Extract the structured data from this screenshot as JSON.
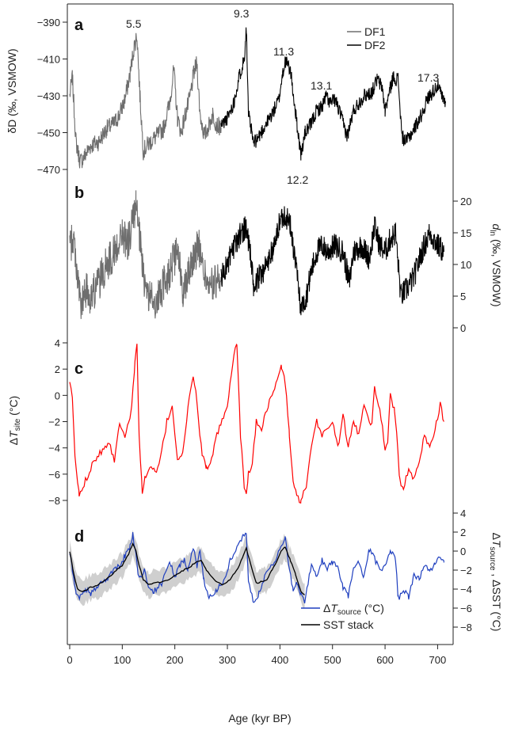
{
  "colors": {
    "df1": "#6e6e6e",
    "df2": "#000000",
    "site": "#ff0000",
    "source": "#1f3fbf",
    "sst": "#000000",
    "band": "#cfcfcf"
  },
  "chart_data": [
    {
      "panel": "a",
      "type": "line",
      "ylabel": "δD (‰, VSMOW)",
      "ylim": [
        -475,
        -385
      ],
      "y_inverted": false,
      "yticks": [
        "-390",
        "-410",
        "-430",
        "-450",
        "-470"
      ],
      "legend": [
        "DF1",
        "DF2"
      ],
      "series": [
        {
          "name": "DF1",
          "x": [
            0,
            5,
            12,
            20,
            30,
            40,
            55,
            70,
            85,
            95,
            105,
            115,
            122,
            128,
            134,
            140,
            150,
            165,
            178,
            190,
            198,
            205,
            212,
            220,
            228,
            236,
            242,
            248,
            256,
            265,
            272,
            280,
            288
          ],
          "y": [
            -430,
            -420,
            -455,
            -466,
            -462,
            -457,
            -455,
            -448,
            -445,
            -440,
            -432,
            -418,
            -404,
            -397,
            -432,
            -460,
            -456,
            -452,
            -448,
            -434,
            -416,
            -442,
            -450,
            -440,
            -432,
            -418,
            -412,
            -440,
            -452,
            -446,
            -440,
            -446,
            -447
          ]
        },
        {
          "name": "DF2",
          "x": [
            288,
            300,
            312,
            322,
            332,
            336,
            340,
            350,
            360,
            372,
            385,
            398,
            405,
            410,
            420,
            430,
            440,
            448,
            458,
            470,
            480,
            488,
            496,
            505,
            515,
            528,
            540,
            550,
            560,
            575,
            585,
            595,
            600,
            605,
            615,
            625,
            632,
            640,
            655,
            670,
            680,
            690,
            700,
            710,
            715
          ],
          "y": [
            -446,
            -442,
            -434,
            -420,
            -410,
            -392,
            -440,
            -456,
            -452,
            -446,
            -440,
            -432,
            -418,
            -411,
            -416,
            -440,
            -462,
            -450,
            -446,
            -438,
            -436,
            -430,
            -434,
            -432,
            -440,
            -452,
            -438,
            -434,
            -430,
            -428,
            -421,
            -426,
            -438,
            -432,
            -420,
            -421,
            -452,
            -455,
            -448,
            -440,
            -432,
            -428,
            -424,
            -432,
            -434
          ]
        }
      ],
      "annotations": [
        "5.5",
        "9.3",
        "11.3",
        "13.1",
        "17.3",
        "12.2"
      ]
    },
    {
      "panel": "b",
      "type": "line",
      "ylabel": "d_ln (‰, VSMOW)",
      "ylim": [
        0,
        22
      ],
      "yticks": [
        "20",
        "15",
        "10",
        "5",
        "0"
      ],
      "series": [
        {
          "name": "DF1",
          "x": [
            0,
            8,
            15,
            22,
            30,
            40,
            55,
            70,
            85,
            100,
            110,
            120,
            126,
            132,
            140,
            150,
            165,
            180,
            195,
            205,
            215,
            230,
            245,
            255,
            265,
            275,
            288
          ],
          "y": [
            13,
            14,
            8,
            3,
            6,
            5,
            7,
            10,
            12,
            15,
            13,
            17,
            19,
            15,
            8,
            5,
            4,
            7,
            10,
            12,
            6,
            10,
            13,
            9,
            6,
            7,
            8
          ]
        },
        {
          "name": "DF2",
          "x": [
            288,
            300,
            315,
            325,
            335,
            342,
            350,
            360,
            375,
            390,
            400,
            410,
            420,
            430,
            440,
            450,
            460,
            470,
            480,
            490,
            505,
            520,
            532,
            540,
            555,
            570,
            580,
            590,
            600,
            610,
            620,
            630,
            640,
            655,
            670,
            685,
            700,
            712
          ],
          "y": [
            8,
            10,
            13,
            15,
            16,
            13,
            6,
            8,
            10,
            13,
            17,
            18,
            16,
            10,
            3,
            5,
            9,
            12,
            13,
            12,
            13,
            12,
            7,
            12,
            13,
            11,
            16,
            13,
            12,
            14,
            15,
            5,
            6,
            8,
            12,
            15,
            13,
            12
          ]
        }
      ]
    },
    {
      "panel": "c",
      "type": "line",
      "ylabel": "ΔT_site (°C)",
      "ylim": [
        -8.5,
        4.5
      ],
      "yticks": [
        "4",
        "2",
        "0",
        "-2",
        "-4",
        "-6",
        "-8"
      ],
      "series": [
        {
          "name": "ΔT_site",
          "x": [
            0,
            5,
            10,
            18,
            25,
            35,
            45,
            55,
            65,
            75,
            85,
            95,
            105,
            112,
            118,
            124,
            128,
            132,
            138,
            145,
            155,
            165,
            175,
            185,
            195,
            205,
            215,
            225,
            235,
            240,
            245,
            252,
            260,
            270,
            280,
            290,
            300,
            310,
            318,
            325,
            332,
            336,
            340,
            348,
            355,
            365,
            375,
            385,
            395,
            403,
            410,
            418,
            425,
            432,
            440,
            450,
            460,
            470,
            480,
            490,
            500,
            510,
            520,
            530,
            540,
            550,
            560,
            570,
            575,
            580,
            590,
            600,
            605,
            610,
            618,
            622,
            628,
            635,
            645,
            655,
            665,
            675,
            685,
            695,
            705,
            712
          ],
          "y": [
            0.8,
            0,
            -4.8,
            -7.6,
            -7,
            -6,
            -5,
            -4.5,
            -4,
            -3.5,
            -5,
            -2,
            -3,
            -2,
            -1,
            2.5,
            3.8,
            -3,
            -7.4,
            -6,
            -5.5,
            -6,
            -4.3,
            -2,
            -0.8,
            -4.8,
            -4.5,
            -1,
            1.5,
            0.5,
            -2,
            -4.5,
            -5.5,
            -5,
            -3,
            -2,
            -1,
            2.5,
            4,
            -3,
            -7,
            -7.5,
            -6,
            -5,
            -2,
            -2.5,
            -1,
            0,
            1.2,
            2.2,
            1,
            -3,
            -6.5,
            -7.8,
            -8,
            -7,
            -4,
            -2,
            -3,
            -2.5,
            -2,
            -4,
            -1.5,
            -4,
            -2,
            -3,
            -0.5,
            -2,
            -2,
            0.5,
            -1,
            -4,
            -3.5,
            0.2,
            -1.2,
            -3,
            -6.5,
            -7.2,
            -5.5,
            -6.5,
            -5,
            -3,
            -4,
            -2.5,
            -0.7,
            -2
          ]
        }
      ]
    },
    {
      "panel": "d",
      "type": "line",
      "ylabel": "ΔT_source , ΔSST (°C)",
      "ylim": [
        -8.5,
        4.5
      ],
      "yticks": [
        "4",
        "2",
        "0",
        "-2",
        "-4",
        "-6",
        "-8"
      ],
      "legend": [
        "ΔT_source (°C)",
        "SST stack"
      ],
      "series": [
        {
          "name": "ΔT_source (°C)",
          "x": [
            0,
            5,
            12,
            20,
            30,
            40,
            55,
            70,
            85,
            95,
            105,
            115,
            120,
            126,
            130,
            136,
            142,
            150,
            160,
            175,
            190,
            200,
            210,
            218,
            225,
            235,
            242,
            248,
            255,
            265,
            280,
            295,
            305,
            320,
            330,
            336,
            340,
            350,
            360,
            372,
            385,
            395,
            405,
            410,
            418,
            425,
            432,
            440,
            447,
            460,
            470,
            480,
            490,
            500,
            510,
            520,
            530,
            540,
            550,
            560,
            570,
            580,
            590,
            600,
            610,
            620,
            625,
            635,
            645,
            655,
            665,
            675,
            685,
            695,
            705,
            712
          ],
          "y": [
            0,
            -2,
            -4.5,
            -4.8,
            -4,
            -4.5,
            -3.5,
            -3,
            -2,
            -1.5,
            -0.5,
            0.5,
            1.8,
            -0.5,
            -2.5,
            -3,
            -2,
            -4,
            -4.2,
            -3.5,
            -1,
            -2.8,
            -1.5,
            -0.8,
            -2,
            0.5,
            -1.8,
            0.2,
            -3,
            -5,
            -4,
            -3,
            -1,
            0.5,
            1.8,
            2,
            -3,
            -5.5,
            -4.5,
            -2.5,
            -1.5,
            -0.5,
            0.8,
            1.5,
            -2,
            -4,
            -3.5,
            -4.5,
            -5.2,
            -1.5,
            -2.8,
            -1,
            -1.8,
            -1.2,
            -1.8,
            -3.8,
            -4.8,
            -1.8,
            -1.2,
            -2.8,
            0.2,
            -0.8,
            -2,
            -1.5,
            0,
            -0.8,
            -5,
            -4.2,
            -4.8,
            -2.5,
            -3,
            -1.5,
            -2,
            -1.5,
            -0.5,
            -1.2
          ]
        },
        {
          "name": "SST stack",
          "x": [
            0,
            8,
            15,
            25,
            40,
            55,
            70,
            85,
            100,
            112,
            120,
            126,
            132,
            140,
            150,
            165,
            180,
            195,
            210,
            225,
            240,
            250,
            260,
            275,
            290,
            305,
            320,
            330,
            336,
            345,
            355,
            365,
            375,
            385,
            395,
            402,
            410,
            420,
            430,
            440,
            447
          ],
          "y": [
            0,
            -2.5,
            -4,
            -4.3,
            -3.8,
            -3.5,
            -3,
            -2.2,
            -1.5,
            -0.3,
            0.8,
            0,
            -1.5,
            -3,
            -3.5,
            -3.3,
            -3.2,
            -2.8,
            -2.2,
            -1.8,
            -1.2,
            -1,
            -2,
            -3,
            -3.6,
            -3,
            -1.8,
            -0.5,
            0.3,
            -1.5,
            -3.4,
            -3.2,
            -3,
            -2,
            -1,
            0,
            0.4,
            -1,
            -2.5,
            -4.2,
            -4.6
          ]
        }
      ]
    }
  ],
  "x_axis": {
    "label": "Age (kyr BP)",
    "xlim": [
      0,
      725
    ],
    "ticks": [
      0,
      100,
      200,
      300,
      400,
      500,
      600,
      700
    ],
    "tick_labels": [
      "0",
      "100",
      "200",
      "300",
      "400",
      "500",
      "600",
      "700"
    ]
  }
}
